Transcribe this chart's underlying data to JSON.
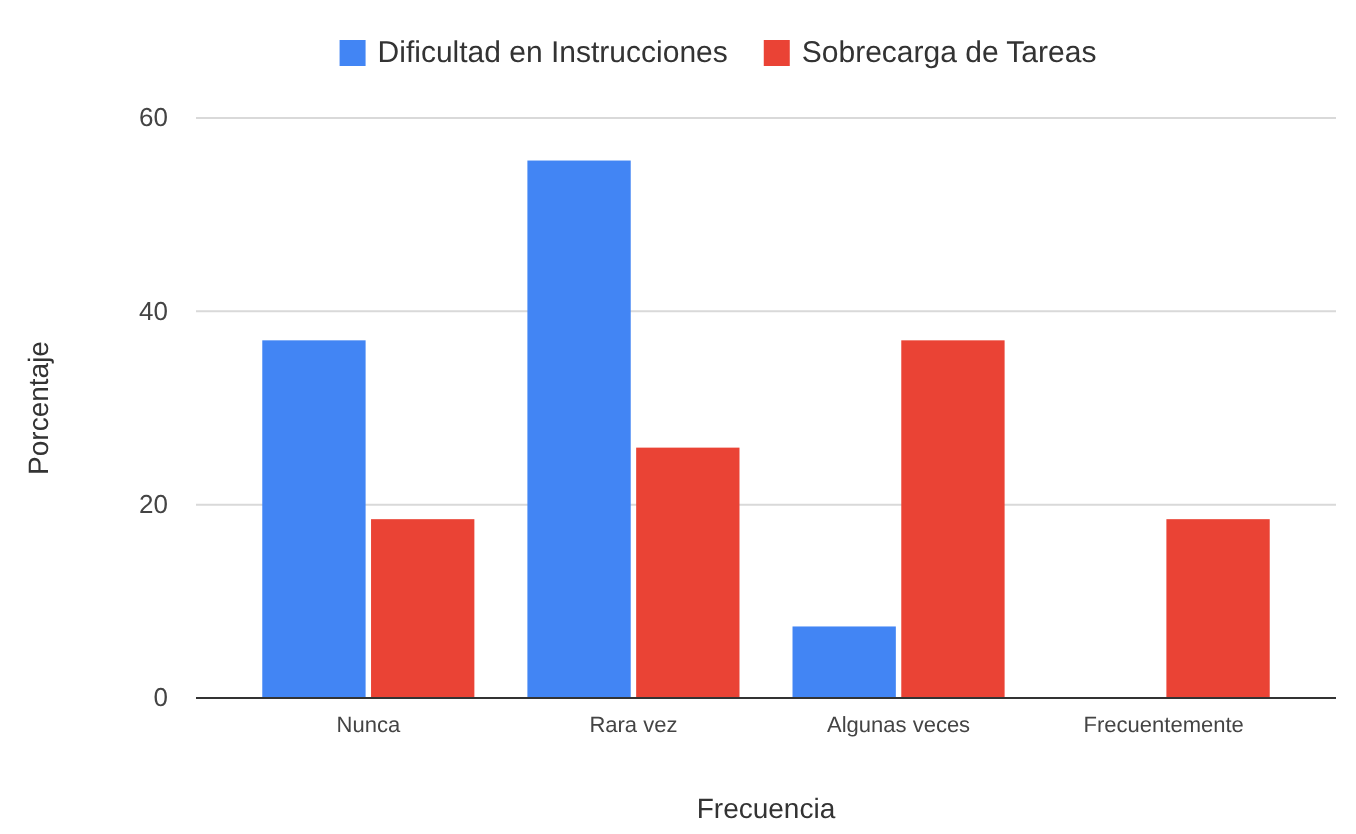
{
  "chart_data": {
    "type": "bar",
    "xlabel": "Frecuencia",
    "ylabel": "Porcentaje",
    "categories": [
      "Nunca",
      "Rara vez",
      "Algunas veces",
      "Frecuentemente"
    ],
    "series": [
      {
        "name": "Dificultad en Instrucciones",
        "color": "#4285f4",
        "values": [
          37.0,
          55.6,
          7.4,
          0
        ]
      },
      {
        "name": "Sobrecarga de Tareas",
        "color": "#ea4335",
        "values": [
          18.5,
          25.9,
          37.0,
          18.5
        ]
      }
    ],
    "ylim": [
      0,
      60
    ],
    "yticks": [
      0,
      20,
      40,
      60
    ],
    "grid": "y",
    "legend": "top"
  }
}
